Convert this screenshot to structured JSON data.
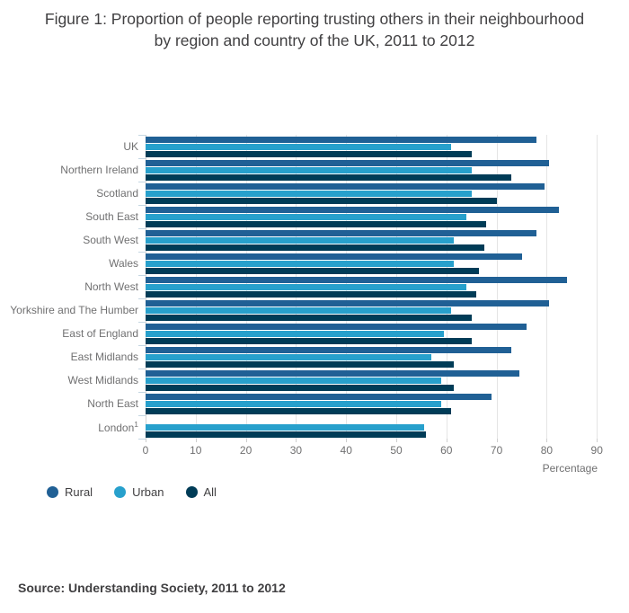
{
  "source": "Source: Understanding Society, 2011 to 2012",
  "colors": {
    "rural": "#206095",
    "urban": "#27a0cc",
    "all": "#003c57",
    "title_text": "#414042",
    "axis_text": "#707071",
    "gridline": "#e5e5e5",
    "category_tick": "#c4d6e2"
  },
  "chart_data": {
    "type": "bar",
    "orientation": "horizontal-grouped",
    "title": "Figure 1: Proportion of people reporting trusting others in their neighbourhood by region and country of the UK, 2011 to 2012",
    "xlabel": "Percentage",
    "ylabel": "",
    "x_ticks": [
      0,
      10,
      20,
      30,
      40,
      50,
      60,
      70,
      80,
      90
    ],
    "xlim": [
      0,
      90.5
    ],
    "grid": true,
    "legend_position": "bottom-left",
    "categories": [
      "UK",
      "Northern Ireland",
      "Scotland",
      "South East",
      "South West",
      "Wales",
      "North West",
      "Yorkshire and The Humber",
      "East of England",
      "East Midlands",
      "West Midlands",
      "North East",
      "London"
    ],
    "category_footnotes": {
      "London": "1"
    },
    "series": [
      {
        "name": "Rural",
        "color": "#206095",
        "values": [
          78,
          80.5,
          79.5,
          82.5,
          78,
          75,
          84,
          80.5,
          76,
          73,
          74.5,
          69,
          null
        ]
      },
      {
        "name": "Urban",
        "color": "#27a0cc",
        "values": [
          61,
          65,
          65,
          64,
          61.5,
          61.5,
          64,
          61,
          59.5,
          57,
          59,
          59,
          55.5
        ]
      },
      {
        "name": "All",
        "color": "#003c57",
        "values": [
          65,
          73,
          70,
          68,
          67.5,
          66.5,
          66,
          65,
          65,
          61.5,
          61.5,
          61,
          56
        ]
      }
    ]
  }
}
